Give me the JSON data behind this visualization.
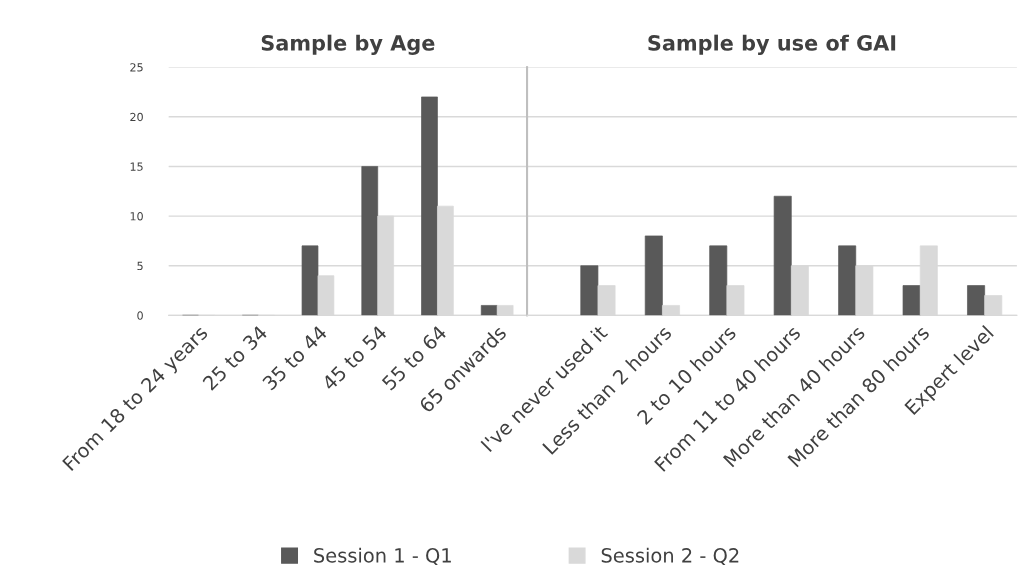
{
  "chart_data": [
    {
      "type": "bar",
      "title": "Sample by Age",
      "categories": [
        "From 18 to 24 years",
        "25 to 34",
        "35 to 44",
        "45 to 54",
        "55 to 64",
        "65 onwards"
      ],
      "series": [
        {
          "name": "Session 1 - Q1",
          "color": "#595959",
          "values": [
            0,
            0,
            7,
            15,
            22,
            1
          ]
        },
        {
          "name": "Session 2 - Q2",
          "color": "#d9d9d9",
          "values": [
            0,
            0,
            4,
            10,
            11,
            1
          ]
        }
      ],
      "ylim": [
        0,
        25
      ],
      "yticks": [
        0,
        5,
        10,
        15,
        20,
        25
      ],
      "grid": "y",
      "legend": "bottom"
    },
    {
      "type": "bar",
      "title": "Sample by use of GAI",
      "categories": [
        "I've never used it",
        "Less than 2 hours",
        "2 to 10 hours",
        "From 11 to 40 hours",
        "More than 40 hours",
        "More than 80 hours",
        "Expert level"
      ],
      "series": [
        {
          "color": "#595959",
          "values": [
            5,
            8,
            7,
            12,
            7,
            3,
            3
          ]
        },
        {
          "color": "#d9d9d9",
          "values": [
            3,
            1,
            3,
            5,
            5,
            7,
            2
          ]
        }
      ],
      "ylim": [
        0,
        25
      ],
      "yticks": [
        0,
        5,
        10,
        15,
        20,
        25
      ],
      "grid": "y",
      "tick_labels": "x"
    }
  ]
}
